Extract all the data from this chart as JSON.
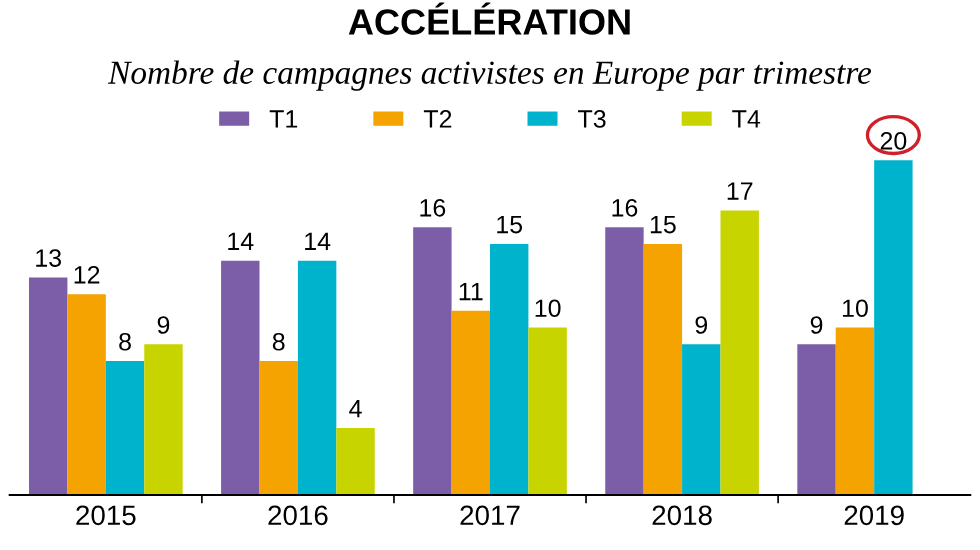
{
  "chart_data": {
    "type": "bar",
    "title": "ACCÉLÉRATION",
    "subtitle": "Nombre de campagnes activistes en Europe par trimestre",
    "categories": [
      "2015",
      "2016",
      "2017",
      "2018",
      "2019"
    ],
    "series": [
      {
        "name": "T1",
        "color": "#7b5ea7",
        "values": [
          13,
          14,
          16,
          16,
          9
        ]
      },
      {
        "name": "T2",
        "color": "#f5a300",
        "values": [
          12,
          8,
          11,
          15,
          10
        ]
      },
      {
        "name": "T3",
        "color": "#00b3cc",
        "values": [
          8,
          14,
          15,
          9,
          20
        ]
      },
      {
        "name": "T4",
        "color": "#c8d400",
        "values": [
          9,
          4,
          10,
          17,
          null
        ]
      }
    ],
    "data_labels": true,
    "legend": "top",
    "grid": false
  }
}
